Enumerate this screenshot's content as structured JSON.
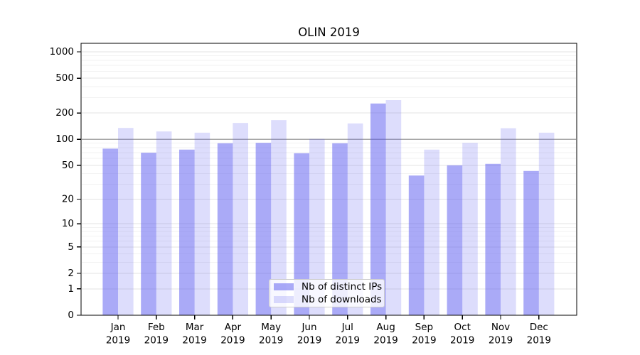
{
  "chart_data": {
    "type": "bar",
    "title": "OLIN 2019",
    "categories": [
      "Jan 2019",
      "Feb 2019",
      "Mar 2019",
      "Apr 2019",
      "May 2019",
      "Jun 2019",
      "Jul 2019",
      "Aug 2019",
      "Sep 2019",
      "Oct 2019",
      "Nov 2019",
      "Dec 2019"
    ],
    "series": [
      {
        "name": "Nb of distinct IPs",
        "values": [
          78,
          70,
          76,
          90,
          91,
          69,
          90,
          257,
          38,
          50,
          52,
          43
        ]
      },
      {
        "name": "Nb of downloads",
        "values": [
          135,
          123,
          119,
          154,
          166,
          101,
          152,
          281,
          76,
          91,
          134,
          119
        ]
      }
    ],
    "xlabel": "",
    "ylabel": "",
    "y_scale": "log10(value+1)",
    "ylim": [
      0,
      1250
    ],
    "y_ticks": [
      0,
      1,
      2,
      5,
      10,
      20,
      50,
      100,
      200,
      500,
      1000
    ],
    "y_minor_ticks": [
      3,
      4,
      6,
      7,
      8,
      9,
      30,
      40,
      60,
      70,
      80,
      90,
      300,
      400,
      600,
      700,
      800,
      900
    ],
    "highlight_gridline": 100,
    "grid": true,
    "legend_position": "lower center",
    "colors": {
      "ips_bar": "rgba(85,85,240,0.5)",
      "downloads_bar": "rgba(85,85,240,0.2)",
      "gridline_major": "#e3e3e3",
      "gridline_minor": "#f2f2f2",
      "reference_line": "#a8a8a8",
      "axis": "#000000",
      "background": "#ffffff"
    }
  }
}
